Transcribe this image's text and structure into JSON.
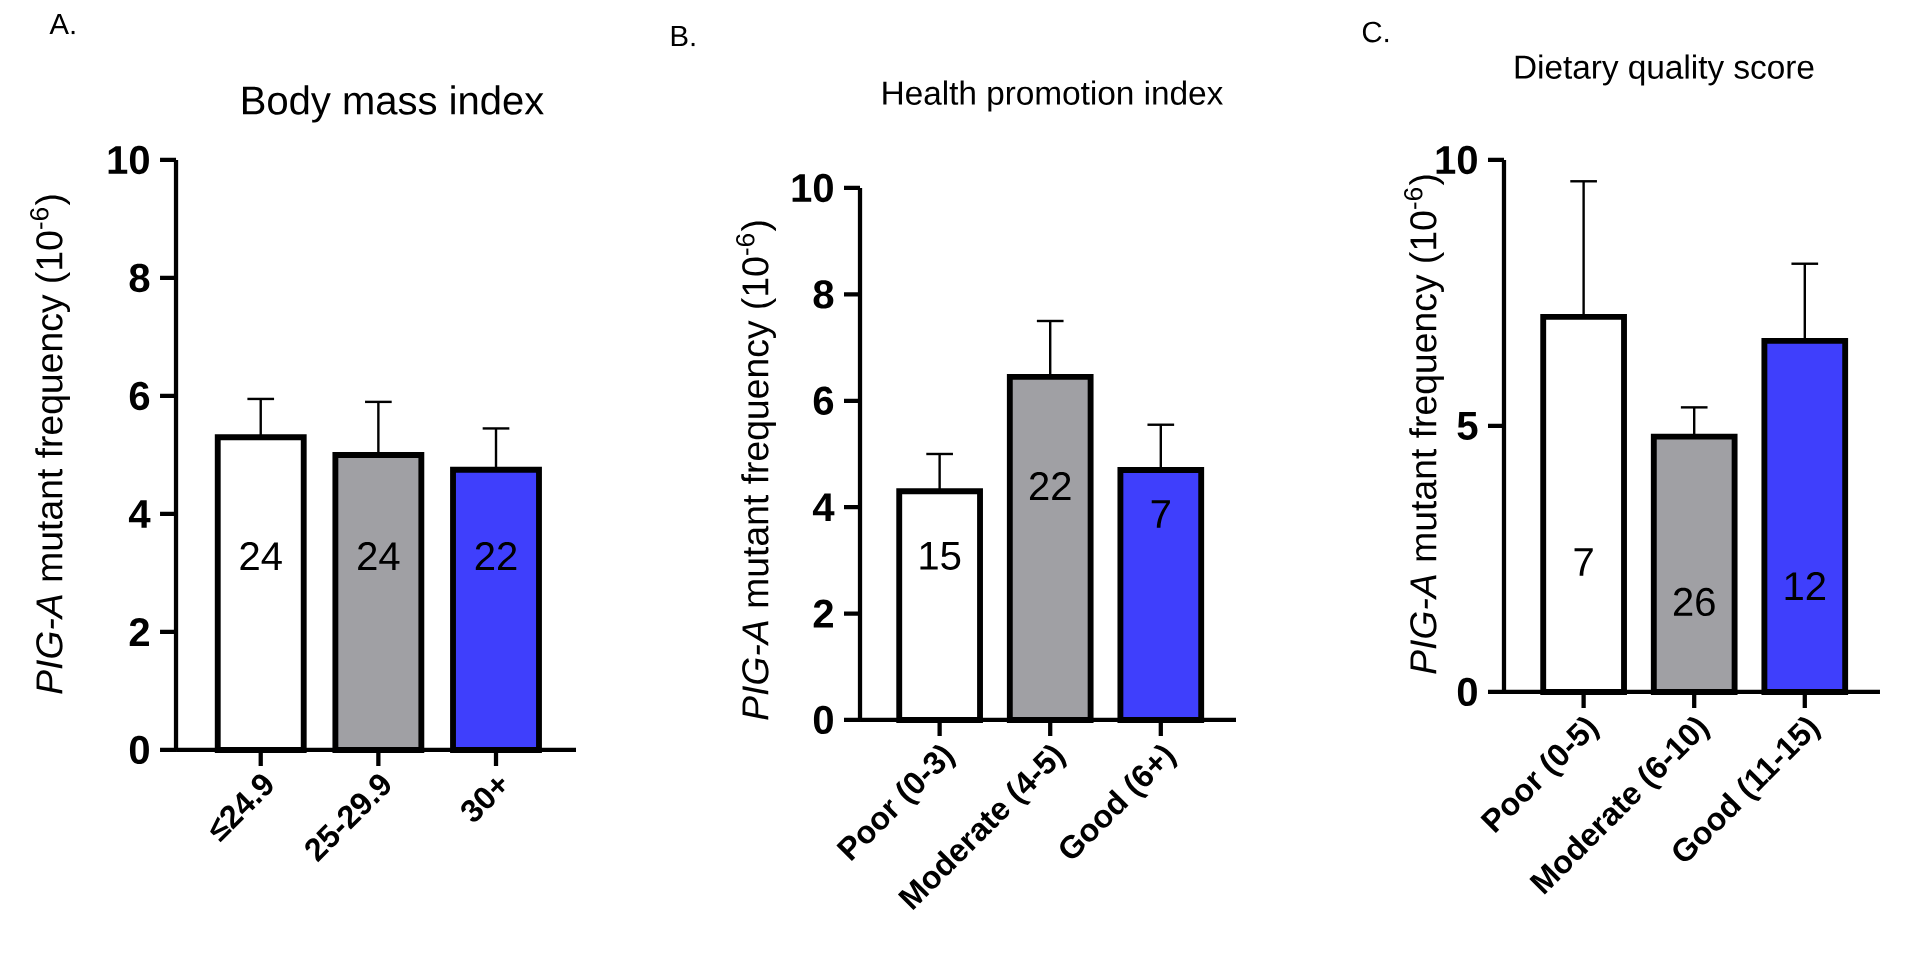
{
  "chart_data": [
    {
      "type": "bar",
      "title": "Body mass index",
      "ylabel": "*PIG-A* mutant frequency (10$^{-6}$)",
      "categories": [
        "≤24.9",
        "25-29.9",
        "30+"
      ],
      "values": [
        5.3,
        5.0,
        4.75
      ],
      "colors": [
        "#ffffff",
        "#a0a0a4",
        "#3f3ffc"
      ],
      "errors": [
        [
          5.3,
          5.95
        ],
        [
          5.0,
          5.9
        ],
        [
          4.75,
          5.45
        ]
      ],
      "ylim": [
        0,
        10
      ],
      "yticks": [
        0,
        2,
        4,
        6,
        8,
        10
      ],
      "annotations": [
        "A.",
        "24",
        "24",
        "22"
      ]
    },
    {
      "type": "bar",
      "title": "Health promotion index",
      "ylabel": "*PIG-A* mutant frequency (10$^{-6}$)",
      "categories": [
        "Poor (0-3)",
        "Moderate (4-5)",
        "Good (6+)"
      ],
      "values": [
        4.3,
        6.45,
        4.7
      ],
      "colors": [
        "#ffffff",
        "#a0a0a4",
        "#3f3ffc"
      ],
      "errors": [
        [
          4.3,
          5.0
        ],
        [
          6.45,
          7.5
        ],
        [
          4.7,
          5.55
        ]
      ],
      "ylim": [
        0,
        10
      ],
      "yticks": [
        0,
        2,
        4,
        6,
        8,
        10
      ],
      "annotations": [
        "B.",
        "15",
        "22",
        "7"
      ]
    },
    {
      "type": "bar",
      "title": "Dietary quality score",
      "ylabel": "*PIG-A* mutant frequency (10$^{-6}$)",
      "categories": [
        "Poor (0-5)",
        "Moderate (6-10)",
        "Good (11-15)"
      ],
      "values": [
        7.05,
        4.8,
        6.6
      ],
      "colors": [
        "#ffffff",
        "#a0a0a4",
        "#3f3ffc"
      ],
      "errors": [
        [
          7.05,
          9.6
        ],
        [
          4.8,
          5.35
        ],
        [
          6.6,
          8.05
        ]
      ],
      "ylim": [
        0,
        10
      ],
      "yticks": [
        0,
        5,
        10
      ],
      "annotations": [
        "C.",
        "7",
        "26",
        "12"
      ]
    }
  ]
}
